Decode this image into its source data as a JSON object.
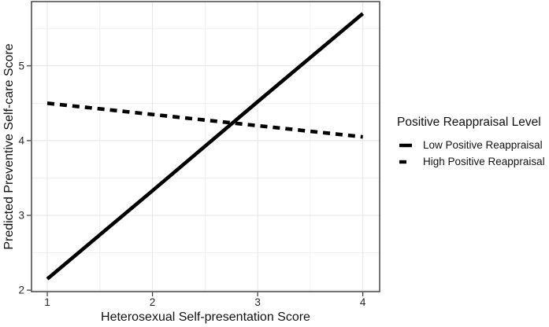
{
  "chart_data": {
    "type": "line",
    "title": "",
    "xlabel": "Heterosexual Self-presentation Score",
    "ylabel": "Predicted Preventive Self-care Score",
    "x": [
      1,
      2,
      3,
      4
    ],
    "series": [
      {
        "name": "Low Positive Reappraisal",
        "style": "solid",
        "values": [
          2.15,
          3.33,
          4.52,
          5.7
        ]
      },
      {
        "name": "High Positive Reappraisal",
        "style": "dashed",
        "values": [
          4.5,
          4.35,
          4.2,
          4.05
        ]
      }
    ],
    "xticks": [
      "1",
      "2",
      "3",
      "4"
    ],
    "yticks": [
      "2",
      "3",
      "4",
      "5"
    ],
    "xtick_values": [
      1,
      2,
      3,
      4
    ],
    "ytick_values": [
      2,
      3,
      4,
      5
    ],
    "minor_xticks": [
      1.5,
      2.5,
      3.5
    ],
    "minor_yticks": [
      2.5,
      3.5,
      4.5,
      5.5
    ],
    "xlim": [
      0.85,
      4.16
    ],
    "ylim": [
      1.98,
      5.86
    ],
    "grid": true,
    "legend": {
      "title": "Positive Reappraisal Level",
      "position": "right",
      "entries": [
        "Low Positive Reappraisal",
        "High Positive Reappraisal"
      ]
    },
    "colors": {
      "line": "#000000",
      "grid_major": "#e4e4e4",
      "grid_minor": "#f0f0f0",
      "border": "#454545",
      "tick": "#333333",
      "tick_label": "#262626",
      "title": "#111111",
      "background": "#ffffff"
    }
  }
}
